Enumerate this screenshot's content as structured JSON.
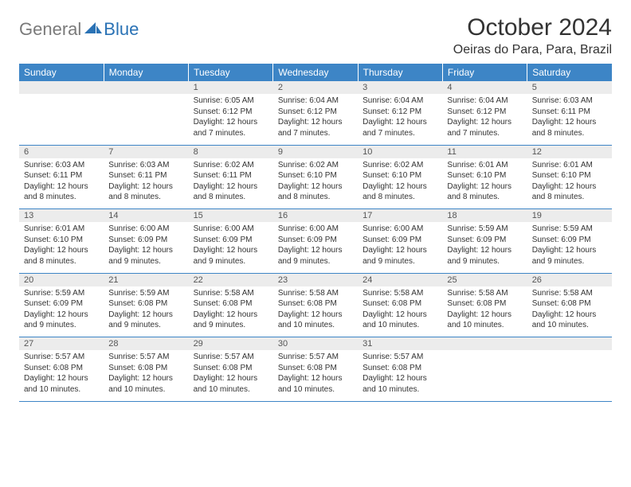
{
  "brand": {
    "general": "General",
    "blue": "Blue"
  },
  "title": "October 2024",
  "location": "Oeiras do Para, Para, Brazil",
  "colors": {
    "header_bg": "#3d85c6",
    "header_fg": "#ffffff",
    "daynum_bg": "#ececec",
    "border": "#3d85c6",
    "logo_gray": "#7a7a7a",
    "logo_blue": "#2a72b5"
  },
  "day_headers": [
    "Sunday",
    "Monday",
    "Tuesday",
    "Wednesday",
    "Thursday",
    "Friday",
    "Saturday"
  ],
  "weeks": [
    [
      null,
      null,
      {
        "n": "1",
        "sr": "6:05 AM",
        "ss": "6:12 PM",
        "dl": "12 hours and 7 minutes."
      },
      {
        "n": "2",
        "sr": "6:04 AM",
        "ss": "6:12 PM",
        "dl": "12 hours and 7 minutes."
      },
      {
        "n": "3",
        "sr": "6:04 AM",
        "ss": "6:12 PM",
        "dl": "12 hours and 7 minutes."
      },
      {
        "n": "4",
        "sr": "6:04 AM",
        "ss": "6:12 PM",
        "dl": "12 hours and 7 minutes."
      },
      {
        "n": "5",
        "sr": "6:03 AM",
        "ss": "6:11 PM",
        "dl": "12 hours and 8 minutes."
      }
    ],
    [
      {
        "n": "6",
        "sr": "6:03 AM",
        "ss": "6:11 PM",
        "dl": "12 hours and 8 minutes."
      },
      {
        "n": "7",
        "sr": "6:03 AM",
        "ss": "6:11 PM",
        "dl": "12 hours and 8 minutes."
      },
      {
        "n": "8",
        "sr": "6:02 AM",
        "ss": "6:11 PM",
        "dl": "12 hours and 8 minutes."
      },
      {
        "n": "9",
        "sr": "6:02 AM",
        "ss": "6:10 PM",
        "dl": "12 hours and 8 minutes."
      },
      {
        "n": "10",
        "sr": "6:02 AM",
        "ss": "6:10 PM",
        "dl": "12 hours and 8 minutes."
      },
      {
        "n": "11",
        "sr": "6:01 AM",
        "ss": "6:10 PM",
        "dl": "12 hours and 8 minutes."
      },
      {
        "n": "12",
        "sr": "6:01 AM",
        "ss": "6:10 PM",
        "dl": "12 hours and 8 minutes."
      }
    ],
    [
      {
        "n": "13",
        "sr": "6:01 AM",
        "ss": "6:10 PM",
        "dl": "12 hours and 8 minutes."
      },
      {
        "n": "14",
        "sr": "6:00 AM",
        "ss": "6:09 PM",
        "dl": "12 hours and 9 minutes."
      },
      {
        "n": "15",
        "sr": "6:00 AM",
        "ss": "6:09 PM",
        "dl": "12 hours and 9 minutes."
      },
      {
        "n": "16",
        "sr": "6:00 AM",
        "ss": "6:09 PM",
        "dl": "12 hours and 9 minutes."
      },
      {
        "n": "17",
        "sr": "6:00 AM",
        "ss": "6:09 PM",
        "dl": "12 hours and 9 minutes."
      },
      {
        "n": "18",
        "sr": "5:59 AM",
        "ss": "6:09 PM",
        "dl": "12 hours and 9 minutes."
      },
      {
        "n": "19",
        "sr": "5:59 AM",
        "ss": "6:09 PM",
        "dl": "12 hours and 9 minutes."
      }
    ],
    [
      {
        "n": "20",
        "sr": "5:59 AM",
        "ss": "6:09 PM",
        "dl": "12 hours and 9 minutes."
      },
      {
        "n": "21",
        "sr": "5:59 AM",
        "ss": "6:08 PM",
        "dl": "12 hours and 9 minutes."
      },
      {
        "n": "22",
        "sr": "5:58 AM",
        "ss": "6:08 PM",
        "dl": "12 hours and 9 minutes."
      },
      {
        "n": "23",
        "sr": "5:58 AM",
        "ss": "6:08 PM",
        "dl": "12 hours and 10 minutes."
      },
      {
        "n": "24",
        "sr": "5:58 AM",
        "ss": "6:08 PM",
        "dl": "12 hours and 10 minutes."
      },
      {
        "n": "25",
        "sr": "5:58 AM",
        "ss": "6:08 PM",
        "dl": "12 hours and 10 minutes."
      },
      {
        "n": "26",
        "sr": "5:58 AM",
        "ss": "6:08 PM",
        "dl": "12 hours and 10 minutes."
      }
    ],
    [
      {
        "n": "27",
        "sr": "5:57 AM",
        "ss": "6:08 PM",
        "dl": "12 hours and 10 minutes."
      },
      {
        "n": "28",
        "sr": "5:57 AM",
        "ss": "6:08 PM",
        "dl": "12 hours and 10 minutes."
      },
      {
        "n": "29",
        "sr": "5:57 AM",
        "ss": "6:08 PM",
        "dl": "12 hours and 10 minutes."
      },
      {
        "n": "30",
        "sr": "5:57 AM",
        "ss": "6:08 PM",
        "dl": "12 hours and 10 minutes."
      },
      {
        "n": "31",
        "sr": "5:57 AM",
        "ss": "6:08 PM",
        "dl": "12 hours and 10 minutes."
      },
      null,
      null
    ]
  ],
  "labels": {
    "sunrise": "Sunrise:",
    "sunset": "Sunset:",
    "daylight": "Daylight:"
  }
}
